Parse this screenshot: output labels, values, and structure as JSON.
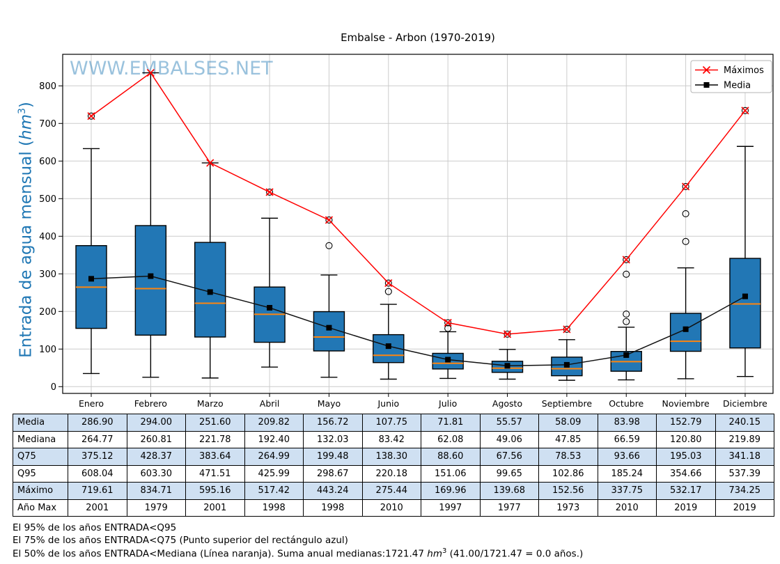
{
  "title": "Embalse - Arbon (1970-2019)",
  "watermark": "WWW.EMBALSES.NET",
  "ylabel": {
    "pre": "Entrada de agua mensual (",
    "unit": "hm",
    "sup": "3",
    "post": ")"
  },
  "legend": {
    "position": "top-right",
    "items": [
      {
        "label": "Máximos",
        "color": "#ff0000",
        "marker": "x"
      },
      {
        "label": "Media",
        "color": "#000000",
        "marker": "square"
      }
    ]
  },
  "colors": {
    "box_fill": "#2277b5",
    "box_edge": "#000000",
    "median_line": "#ff850e",
    "max_line": "#ff0000",
    "mean_line": "#111111",
    "grid": "#cccccc",
    "watermark": "rgba(31,119,180,0.45)",
    "ylabel_text": "#1f77b4",
    "table_shade": "#cfe0f2"
  },
  "chart_data": {
    "type": "boxplot-with-lines",
    "title": "Embalse - Arbon (1970-2019)",
    "xlabel": "",
    "ylabel": "Entrada de agua mensual (hm3)",
    "grid": true,
    "ylim": [
      -19,
      884
    ],
    "yticks": [
      0,
      100,
      200,
      300,
      400,
      500,
      600,
      700,
      800
    ],
    "categories": [
      "Enero",
      "Febrero",
      "Marzo",
      "Abril",
      "Mayo",
      "Junio",
      "Julio",
      "Agosto",
      "Septiembre",
      "Octubre",
      "Noviembre",
      "Diciembre"
    ],
    "series": [
      {
        "name": "Máximos",
        "marker": "x",
        "color": "#ff0000",
        "values": [
          719.61,
          834.71,
          595.16,
          517.42,
          443.24,
          275.44,
          169.96,
          139.68,
          152.56,
          337.75,
          532.17,
          734.25
        ]
      },
      {
        "name": "Media",
        "marker": "square",
        "color": "#000000",
        "values": [
          286.9,
          294.0,
          251.6,
          209.82,
          156.72,
          107.75,
          71.81,
          55.57,
          58.09,
          83.98,
          152.79,
          240.15
        ]
      }
    ],
    "boxplot": {
      "median": [
        264.77,
        260.81,
        221.78,
        192.4,
        132.03,
        83.42,
        62.08,
        49.06,
        47.85,
        66.59,
        120.8,
        219.89
      ],
      "q25": [
        155,
        137,
        132,
        118,
        95,
        64,
        47,
        38,
        29,
        41,
        94,
        103
      ],
      "q75": [
        375.12,
        428.37,
        383.64,
        264.99,
        199.48,
        138.3,
        88.6,
        67.56,
        78.53,
        93.66,
        195.03,
        341.18
      ],
      "whisker_low": [
        35,
        25,
        23,
        52,
        25,
        20,
        22,
        20,
        17,
        18,
        21,
        27
      ],
      "whisker_high": [
        633,
        834.71,
        595.16,
        448,
        297,
        219,
        146,
        99,
        125,
        158,
        316,
        639
      ],
      "outliers": [
        [
          719.61
        ],
        [],
        [],
        [
          517.42
        ],
        [
          375,
          443.24
        ],
        [
          253,
          275.44
        ],
        [
          155,
          169.96
        ],
        [
          139.68
        ],
        [
          152.56
        ],
        [
          173,
          193,
          299,
          337.75
        ],
        [
          386,
          460,
          532.17
        ],
        [
          734.25
        ]
      ]
    }
  },
  "table": {
    "col_headers": [
      "Enero",
      "Febrero",
      "Marzo",
      "Abril",
      "Mayo",
      "Junio",
      "Julio",
      "Agosto",
      "Septiembre",
      "Octubre",
      "Noviembre",
      "Diciembre"
    ],
    "rows": [
      {
        "label": "Media",
        "shaded": true,
        "values": [
          "286.90",
          "294.00",
          "251.60",
          "209.82",
          "156.72",
          "107.75",
          "71.81",
          "55.57",
          "58.09",
          "83.98",
          "152.79",
          "240.15"
        ]
      },
      {
        "label": "Mediana",
        "shaded": false,
        "values": [
          "264.77",
          "260.81",
          "221.78",
          "192.40",
          "132.03",
          "83.42",
          "62.08",
          "49.06",
          "47.85",
          "66.59",
          "120.80",
          "219.89"
        ]
      },
      {
        "label": "Q75",
        "shaded": true,
        "values": [
          "375.12",
          "428.37",
          "383.64",
          "264.99",
          "199.48",
          "138.30",
          "88.60",
          "67.56",
          "78.53",
          "93.66",
          "195.03",
          "341.18"
        ]
      },
      {
        "label": "Q95",
        "shaded": false,
        "values": [
          "608.04",
          "603.30",
          "471.51",
          "425.99",
          "298.67",
          "220.18",
          "151.06",
          "99.65",
          "102.86",
          "185.24",
          "354.66",
          "537.39"
        ]
      },
      {
        "label": "Máximo",
        "shaded": true,
        "values": [
          "719.61",
          "834.71",
          "595.16",
          "517.42",
          "443.24",
          "275.44",
          "169.96",
          "139.68",
          "152.56",
          "337.75",
          "532.17",
          "734.25"
        ]
      },
      {
        "label": "Año Max",
        "shaded": false,
        "values": [
          "2001",
          "1979",
          "2001",
          "1998",
          "1998",
          "2010",
          "1997",
          "1977",
          "1973",
          "2010",
          "2019",
          "2019"
        ]
      }
    ]
  },
  "footnotes": {
    "line1": "El 95% de los años ENTRADA<Q95",
    "line2": "El 75% de los años ENTRADA<Q75 (Punto superior del rectángulo azul)",
    "line3": {
      "pre": "El 50% de los años ENTRADA<Mediana (Línea naranja). Suma anual medianas:1721.47 ",
      "unit": "hm",
      "sup": "3",
      "post": " (41.00/1721.47 = 0.0 años.)"
    }
  }
}
